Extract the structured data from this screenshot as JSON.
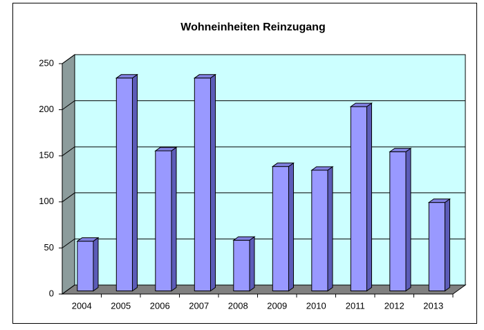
{
  "chart_data": {
    "type": "bar",
    "title": "Wohneinheiten Reinzugang",
    "categories": [
      "2004",
      "2005",
      "2006",
      "2007",
      "2008",
      "2009",
      "2010",
      "2011",
      "2012",
      "2013"
    ],
    "values": [
      54,
      231,
      152,
      231,
      55,
      135,
      131,
      200,
      151,
      96
    ],
    "color": "#9999ff",
    "ylim": [
      0,
      250
    ],
    "yticks": [
      0,
      50,
      100,
      150,
      200,
      250
    ],
    "grid": true
  }
}
